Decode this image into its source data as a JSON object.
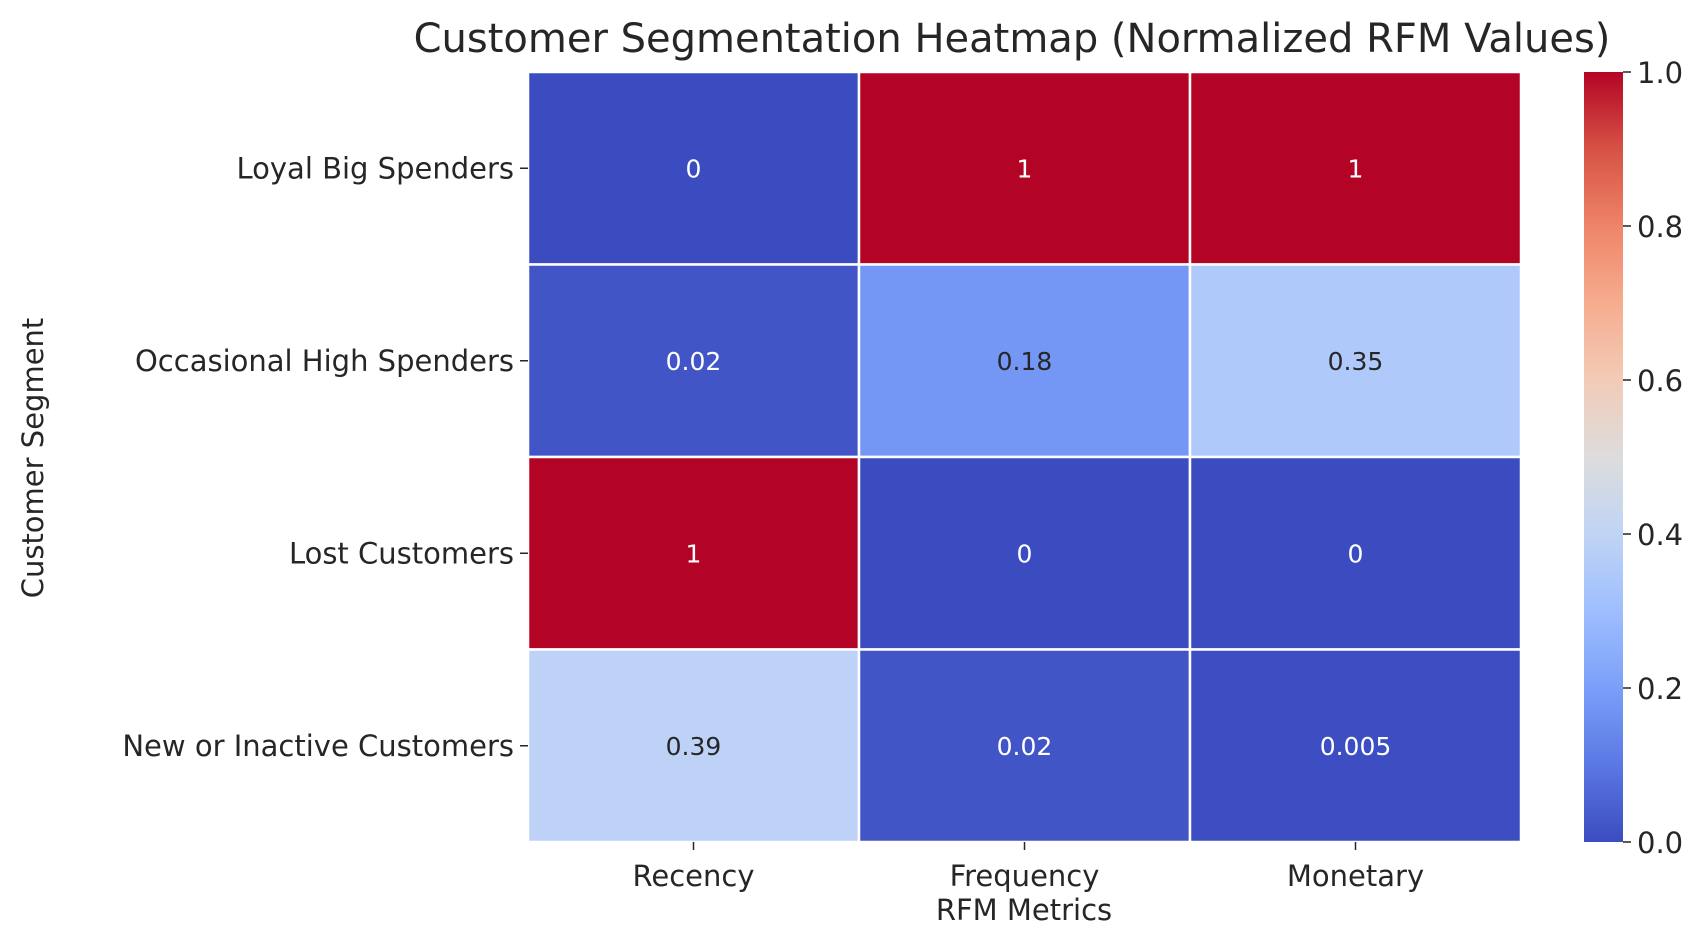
{
  "chart_data": {
    "type": "heatmap",
    "title": "Customer Segmentation Heatmap (Normalized RFM Values)",
    "xlabel": "RFM Metrics",
    "ylabel": "Customer Segment",
    "columns": [
      "Recency",
      "Frequency",
      "Monetary"
    ],
    "rows": [
      "Loyal Big Spenders",
      "Occasional High Spenders",
      "Lost Customers",
      "New or Inactive Customers"
    ],
    "values": [
      [
        0,
        1,
        1
      ],
      [
        0.02,
        0.18,
        0.35
      ],
      [
        1,
        0,
        0
      ],
      [
        0.39,
        0.02,
        0.005
      ]
    ],
    "cell_labels": [
      [
        "0",
        "1",
        "1"
      ],
      [
        "0.02",
        "0.18",
        "0.35"
      ],
      [
        "1",
        "0",
        "0"
      ],
      [
        "0.39",
        "0.02",
        "0.005"
      ]
    ],
    "colormap": "coolwarm",
    "vmin": 0,
    "vmax": 1,
    "colorbar_ticks": [
      "0.0",
      "0.2",
      "0.4",
      "0.6",
      "0.8",
      "1.0"
    ],
    "colors": {
      "low": "#3b4cc0",
      "mid": "#dddddd",
      "high": "#b40426",
      "cell_border": "#ffffff",
      "text": "#262626"
    }
  }
}
